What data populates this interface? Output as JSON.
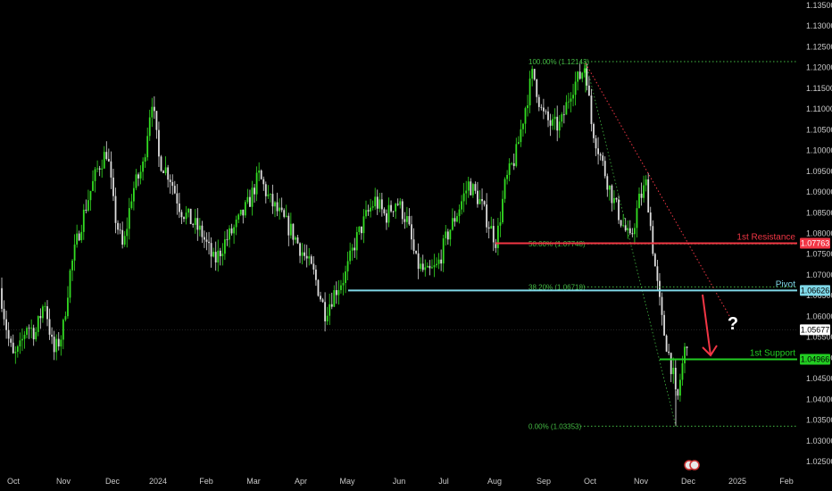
{
  "chart_data": {
    "type": "candlestick",
    "instrument_note": "",
    "colors": {
      "background": "#000000",
      "up": "#33dd22",
      "down": "#dddddd",
      "resistance": "#f23645",
      "pivot": "#7fd8e8",
      "support": "#22cc22",
      "fib": "#44bb44",
      "arrow": "#f23645",
      "question": "#ffffff"
    },
    "y_axis": {
      "min": 1.0175,
      "max": 1.1375,
      "ticks": [
        "1.13500",
        "1.13000",
        "1.12500",
        "1.12000",
        "1.11500",
        "1.11000",
        "1.10500",
        "1.10000",
        "1.09500",
        "1.09000",
        "1.08500",
        "1.08000",
        "1.07500",
        "1.07000",
        "1.06500",
        "1.06000",
        "1.05500",
        "1.05000",
        "1.04500",
        "1.04000",
        "1.03500",
        "1.03000",
        "1.02500"
      ]
    },
    "x_axis": {
      "labels": [
        "Oct",
        "Nov",
        "Dec",
        "2024",
        "Feb",
        "Mar",
        "Apr",
        "May",
        "Jun",
        "Jul",
        "Aug",
        "Sep",
        "Oct",
        "Nov",
        "Dec",
        "2025",
        "Feb"
      ]
    },
    "price_path": [
      [
        0,
        1.0668
      ],
      [
        5,
        1.06
      ],
      [
        10,
        1.054
      ],
      [
        15,
        1.05
      ],
      [
        22,
        1.052
      ],
      [
        30,
        1.058
      ],
      [
        40,
        1.056
      ],
      [
        50,
        1.064
      ],
      [
        60,
        1.051
      ],
      [
        70,
        1.056
      ],
      [
        78,
        1.07
      ],
      [
        88,
        1.08
      ],
      [
        98,
        1.088
      ],
      [
        110,
        1.096
      ],
      [
        120,
        1.1
      ],
      [
        128,
        1.085
      ],
      [
        138,
        1.076
      ],
      [
        148,
        1.09
      ],
      [
        160,
        1.096
      ],
      [
        170,
        1.113
      ],
      [
        178,
        1.098
      ],
      [
        190,
        1.094
      ],
      [
        202,
        1.086
      ],
      [
        214,
        1.083
      ],
      [
        226,
        1.08
      ],
      [
        240,
        1.073
      ],
      [
        252,
        1.078
      ],
      [
        265,
        1.082
      ],
      [
        278,
        1.087
      ],
      [
        290,
        1.094
      ],
      [
        302,
        1.088
      ],
      [
        315,
        1.084
      ],
      [
        328,
        1.08
      ],
      [
        340,
        1.075
      ],
      [
        352,
        1.07
      ],
      [
        364,
        1.061
      ],
      [
        375,
        1.066
      ],
      [
        387,
        1.07
      ],
      [
        398,
        1.078
      ],
      [
        410,
        1.084
      ],
      [
        420,
        1.088
      ],
      [
        432,
        1.084
      ],
      [
        444,
        1.088
      ],
      [
        456,
        1.083
      ],
      [
        466,
        1.073
      ],
      [
        478,
        1.07
      ],
      [
        490,
        1.072
      ],
      [
        500,
        1.079
      ],
      [
        512,
        1.085
      ],
      [
        525,
        1.092
      ],
      [
        537,
        1.088
      ],
      [
        548,
        1.082
      ],
      [
        556,
        1.078
      ],
      [
        566,
        1.092
      ],
      [
        578,
        1.099
      ],
      [
        588,
        1.11
      ],
      [
        597,
        1.119
      ],
      [
        607,
        1.109
      ],
      [
        618,
        1.106
      ],
      [
        628,
        1.106
      ],
      [
        640,
        1.115
      ],
      [
        650,
        1.118
      ],
      [
        656,
        1.121
      ],
      [
        662,
        1.107
      ],
      [
        672,
        1.099
      ],
      [
        684,
        1.09
      ],
      [
        696,
        1.083
      ],
      [
        706,
        1.078
      ],
      [
        716,
        1.088
      ],
      [
        724,
        1.092
      ],
      [
        730,
        1.079
      ],
      [
        736,
        1.068
      ],
      [
        742,
        1.058
      ],
      [
        748,
        1.052
      ],
      [
        754,
        1.046
      ],
      [
        758,
        1.038
      ],
      [
        762,
        1.045
      ],
      [
        768,
        1.053
      ],
      [
        772,
        1.057
      ]
    ],
    "price_scale": {
      "current_price": "1.05677",
      "current_price_value": 1.05677
    },
    "levels": [
      {
        "name": "1st Resistance",
        "value": 1.07763,
        "tag": "1.07763",
        "color": "#f23645",
        "x_start_frac": 0.596
      },
      {
        "name": "Pivot",
        "value": 1.06626,
        "tag": "1.06626",
        "color": "#7fd8e8",
        "x_start_frac": 0.418
      },
      {
        "name": "1st Support",
        "value": 1.04966,
        "tag": "1.04966",
        "color": "#22cc22",
        "x_start_frac": 0.793
      }
    ],
    "fibonacci": [
      {
        "label": "100.00% (1.12143)",
        "value": 1.12143
      },
      {
        "label": "50.00% (1.07748)",
        "value": 1.07748
      },
      {
        "label": "38.20% (1.06710)",
        "value": 1.0671
      },
      {
        "label": "0.00% (1.03353)",
        "value": 1.03353
      }
    ],
    "annotations": {
      "question_mark": "?"
    }
  }
}
